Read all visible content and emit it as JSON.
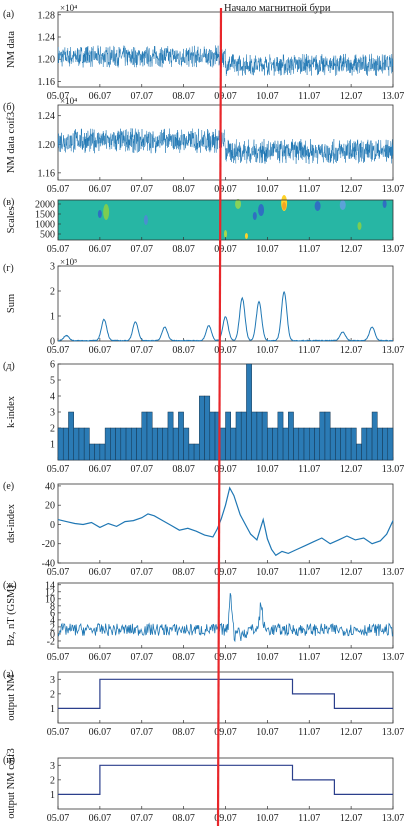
{
  "annotation": "Начало магнитной бури",
  "colors": {
    "series": "#1f77b4",
    "storm_line": "#e8262a",
    "bar_fill": "#2b7bb5",
    "axis": "#333333"
  },
  "x_ticks": [
    "05.07",
    "06.07",
    "07.07",
    "08.07",
    "09.07",
    "10.07",
    "11.07",
    "12.07",
    "13.07"
  ],
  "chart_data": [
    {
      "panel": "(а)",
      "type": "line",
      "ylabel": "NM data",
      "exponent": "×10⁴",
      "yticks": [
        "1.16",
        "1.20",
        "1.24",
        "1.28"
      ],
      "ylim": [
        1.15,
        1.285
      ],
      "series": [
        {
          "x_start": "05.07",
          "x_end": "13.07",
          "mean_before_storm": 1.205,
          "mean_after_storm": 1.19,
          "noise_band": 0.04
        }
      ]
    },
    {
      "panel": "(б)",
      "type": "line",
      "ylabel": "NM data coif3",
      "exponent": "×10⁴",
      "yticks": [
        "1.16",
        "1.20",
        "1.24"
      ],
      "ylim": [
        1.15,
        1.255
      ],
      "series": [
        {
          "x_start": "05.07",
          "x_end": "13.07",
          "mean_before_storm": 1.205,
          "mean_after_storm": 1.19,
          "noise_band": 0.035
        }
      ]
    },
    {
      "panel": "(в)",
      "type": "heatmap",
      "ylabel": "Scales",
      "yticks": [
        "500",
        "1000",
        "1500",
        "2000"
      ],
      "ylim": [
        200,
        2200
      ]
    },
    {
      "panel": "(г)",
      "type": "line",
      "ylabel": "Sum",
      "exponent": "×10⁵",
      "yticks": [
        "0",
        "1",
        "2",
        "3"
      ],
      "ylim": [
        0,
        3
      ],
      "peaks": [
        {
          "x": 5.2,
          "y": 0.2
        },
        {
          "x": 6.1,
          "y": 0.85
        },
        {
          "x": 6.85,
          "y": 0.75
        },
        {
          "x": 7.55,
          "y": 0.55
        },
        {
          "x": 8.6,
          "y": 0.6
        },
        {
          "x": 9.0,
          "y": 0.95
        },
        {
          "x": 9.4,
          "y": 1.7
        },
        {
          "x": 9.8,
          "y": 1.55
        },
        {
          "x": 10.4,
          "y": 1.95
        },
        {
          "x": 11.8,
          "y": 0.35
        },
        {
          "x": 12.5,
          "y": 0.55
        }
      ]
    },
    {
      "panel": "(д)",
      "type": "bar",
      "ylabel": "k-index",
      "yticks": [
        "1",
        "2",
        "3",
        "4",
        "5",
        "6"
      ],
      "ylim": [
        0,
        6
      ],
      "values": [
        2,
        2,
        3,
        2,
        2,
        2,
        1,
        1,
        1,
        2,
        2,
        2,
        2,
        2,
        2,
        2,
        3,
        3,
        2,
        2,
        2,
        3,
        2,
        3,
        2,
        1,
        1,
        4,
        4,
        3,
        3,
        2,
        3,
        2,
        3,
        3,
        6,
        3,
        3,
        3,
        2,
        2,
        3,
        2,
        3,
        2,
        2,
        2,
        2,
        2,
        3,
        3,
        2,
        2,
        2,
        2,
        2,
        1,
        2,
        2,
        3,
        2,
        2,
        2
      ]
    },
    {
      "panel": "(е)",
      "type": "line",
      "ylabel": "dst-index",
      "yticks": [
        "-40",
        "-20",
        "0",
        "20",
        "40"
      ],
      "ylim": [
        -40,
        42
      ],
      "points": [
        [
          5.0,
          5
        ],
        [
          5.2,
          3
        ],
        [
          5.4,
          1
        ],
        [
          5.6,
          0
        ],
        [
          5.8,
          2
        ],
        [
          6.0,
          -3
        ],
        [
          6.2,
          1
        ],
        [
          6.4,
          -2
        ],
        [
          6.6,
          3
        ],
        [
          6.8,
          4
        ],
        [
          7.0,
          7
        ],
        [
          7.15,
          11
        ],
        [
          7.3,
          9
        ],
        [
          7.5,
          4
        ],
        [
          7.7,
          -1
        ],
        [
          7.9,
          -6
        ],
        [
          8.1,
          -4
        ],
        [
          8.3,
          -7
        ],
        [
          8.5,
          -11
        ],
        [
          8.7,
          -13
        ],
        [
          8.8,
          -5
        ],
        [
          8.9,
          6
        ],
        [
          9.0,
          20
        ],
        [
          9.1,
          38
        ],
        [
          9.2,
          30
        ],
        [
          9.35,
          10
        ],
        [
          9.5,
          -2
        ],
        [
          9.6,
          -10
        ],
        [
          9.75,
          -16
        ],
        [
          9.9,
          5
        ],
        [
          10.0,
          -15
        ],
        [
          10.1,
          -26
        ],
        [
          10.2,
          -32
        ],
        [
          10.35,
          -28
        ],
        [
          10.5,
          -30
        ],
        [
          10.7,
          -26
        ],
        [
          10.9,
          -22
        ],
        [
          11.1,
          -18
        ],
        [
          11.3,
          -14
        ],
        [
          11.5,
          -20
        ],
        [
          11.7,
          -16
        ],
        [
          11.9,
          -12
        ],
        [
          12.1,
          -16
        ],
        [
          12.3,
          -14
        ],
        [
          12.5,
          -20
        ],
        [
          12.7,
          -17
        ],
        [
          12.85,
          -10
        ],
        [
          13.0,
          4
        ]
      ]
    },
    {
      "panel": "(ж)",
      "type": "line",
      "ylabel": "Bz, nT (GSM)",
      "yticks": [
        "-2",
        "0",
        "2",
        "4",
        "6",
        "8",
        "10",
        "12",
        "14"
      ],
      "ylim": [
        -4,
        14.5
      ]
    },
    {
      "panel": "(з)",
      "type": "line",
      "ylabel": "output NM",
      "yticks": [
        "1",
        "2",
        "3"
      ],
      "ylim": [
        0,
        3.5
      ],
      "points": [
        [
          5.0,
          1
        ],
        [
          6.0,
          1
        ],
        [
          6.0,
          3
        ],
        [
          10.6,
          3
        ],
        [
          10.6,
          2
        ],
        [
          11.6,
          2
        ],
        [
          11.6,
          1
        ],
        [
          13.0,
          1
        ]
      ]
    },
    {
      "panel": "(и)",
      "type": "line",
      "ylabel": "output NM coif3",
      "yticks": [
        "1",
        "2",
        "3"
      ],
      "ylim": [
        0,
        3.5
      ],
      "points": [
        [
          5.0,
          1
        ],
        [
          6.0,
          1
        ],
        [
          6.0,
          3
        ],
        [
          10.6,
          3
        ],
        [
          10.6,
          2
        ],
        [
          11.6,
          2
        ],
        [
          11.6,
          1
        ],
        [
          13.0,
          1
        ]
      ]
    }
  ]
}
